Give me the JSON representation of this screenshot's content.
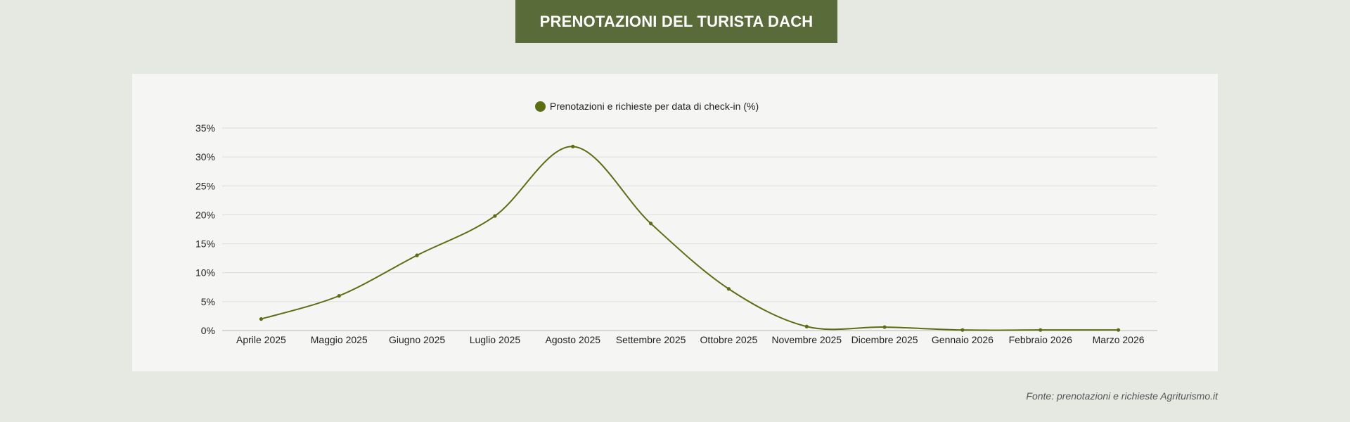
{
  "title": "PRENOTAZIONI DEL TURISTA DACH",
  "source": "Fonte: prenotazioni e richieste Agriturismo.it",
  "colors": {
    "background": "#e6e8e2",
    "banner": "#5a6b3a",
    "panel": "#f5f5f4",
    "series": "#5c6e12",
    "grid": "#dcdcdc"
  },
  "chart_data": {
    "type": "line",
    "smooth": true,
    "categories": [
      "Aprile 2025",
      "Maggio 2025",
      "Giugno 2025",
      "Luglio 2025",
      "Agosto 2025",
      "Settembre 2025",
      "Ottobre 2025",
      "Novembre 2025",
      "Dicembre 2025",
      "Gennaio 2026",
      "Febbraio 2026",
      "Marzo 2026"
    ],
    "series": [
      {
        "name": "Prenotazioni e richieste per data di check-in (%)",
        "values": [
          2.0,
          6.0,
          13.0,
          19.8,
          31.8,
          18.5,
          7.2,
          0.7,
          0.6,
          0.1,
          0.1,
          0.1
        ]
      }
    ],
    "ylim": [
      0,
      35
    ],
    "yticks": [
      "0%",
      "5%",
      "10%",
      "15%",
      "20%",
      "25%",
      "30%",
      "35%"
    ],
    "legend_position": "top-center",
    "grid": true
  }
}
